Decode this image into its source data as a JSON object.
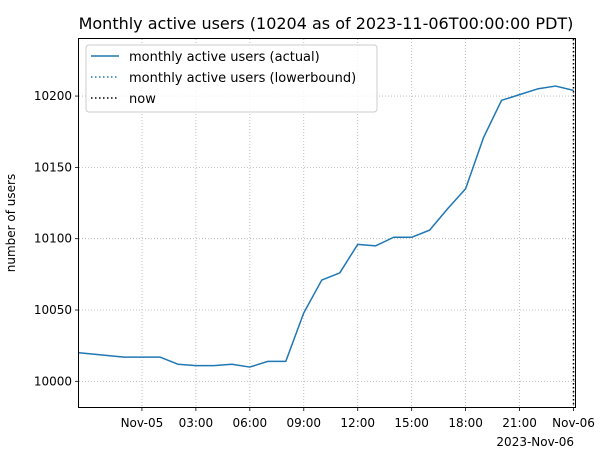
{
  "chart_data": {
    "type": "line",
    "title": "Monthly active users (10204 as of 2023-11-06T00:00:00 PDT)",
    "xlabel": "",
    "ylabel": "number of users",
    "x_axis": {
      "type": "datetime",
      "range": [
        "2023-11-04T20:30:00",
        "2023-11-06T00:05:00"
      ],
      "ticks": [
        {
          "x": "2023-11-05T00:00:00",
          "label": "Nov-05"
        },
        {
          "x": "2023-11-05T03:00:00",
          "label": "03:00"
        },
        {
          "x": "2023-11-05T06:00:00",
          "label": "06:00"
        },
        {
          "x": "2023-11-05T09:00:00",
          "label": "09:00"
        },
        {
          "x": "2023-11-05T12:00:00",
          "label": "12:00"
        },
        {
          "x": "2023-11-05T15:00:00",
          "label": "15:00"
        },
        {
          "x": "2023-11-05T18:00:00",
          "label": "18:00"
        },
        {
          "x": "2023-11-05T21:00:00",
          "label": "21:00"
        },
        {
          "x": "2023-11-06T00:00:00",
          "label": "Nov-06"
        }
      ],
      "offset_label": "2023-Nov-06"
    },
    "y_axis": {
      "range": [
        9982,
        10240
      ],
      "ticks": [
        10000,
        10050,
        10100,
        10150,
        10200
      ]
    },
    "grid": true,
    "legend_position": "top-left",
    "series": [
      {
        "name": "monthly active users (actual)",
        "style": "solid",
        "color": "#1f77b4",
        "points": [
          {
            "x": "2023-11-04T20:30:00",
            "y": 10020
          },
          {
            "x": "2023-11-04T23:00:00",
            "y": 10017
          },
          {
            "x": "2023-11-05T01:00:00",
            "y": 10017
          },
          {
            "x": "2023-11-05T02:00:00",
            "y": 10012
          },
          {
            "x": "2023-11-05T03:00:00",
            "y": 10011
          },
          {
            "x": "2023-11-05T04:00:00",
            "y": 10011
          },
          {
            "x": "2023-11-05T05:00:00",
            "y": 10012
          },
          {
            "x": "2023-11-05T06:00:00",
            "y": 10010
          },
          {
            "x": "2023-11-05T07:00:00",
            "y": 10014
          },
          {
            "x": "2023-11-05T08:00:00",
            "y": 10014
          },
          {
            "x": "2023-11-05T09:00:00",
            "y": 10048
          },
          {
            "x": "2023-11-05T10:00:00",
            "y": 10071
          },
          {
            "x": "2023-11-05T11:00:00",
            "y": 10076
          },
          {
            "x": "2023-11-05T12:00:00",
            "y": 10096
          },
          {
            "x": "2023-11-05T13:00:00",
            "y": 10095
          },
          {
            "x": "2023-11-05T14:00:00",
            "y": 10101
          },
          {
            "x": "2023-11-05T15:00:00",
            "y": 10101
          },
          {
            "x": "2023-11-05T16:00:00",
            "y": 10106
          },
          {
            "x": "2023-11-05T17:00:00",
            "y": 10121
          },
          {
            "x": "2023-11-05T18:00:00",
            "y": 10135
          },
          {
            "x": "2023-11-05T19:00:00",
            "y": 10171
          },
          {
            "x": "2023-11-05T20:00:00",
            "y": 10197
          },
          {
            "x": "2023-11-05T21:00:00",
            "y": 10201
          },
          {
            "x": "2023-11-05T22:00:00",
            "y": 10205
          },
          {
            "x": "2023-11-05T23:00:00",
            "y": 10207
          },
          {
            "x": "2023-11-06T00:00:00",
            "y": 10204
          }
        ]
      },
      {
        "name": "monthly active users (lowerbound)",
        "style": "dotted",
        "color": "#1f77b4",
        "points": []
      }
    ],
    "vlines": [
      {
        "name": "now",
        "x": "2023-11-06T00:00:00",
        "style": "dotted",
        "color": "#000000"
      }
    ],
    "legend": [
      {
        "label": "monthly active users (actual)",
        "style": "solid",
        "color": "#1f77b4"
      },
      {
        "label": "monthly active users (lowerbound)",
        "style": "dotted",
        "color": "#1f77b4"
      },
      {
        "label": "now",
        "style": "dotted",
        "color": "#000000"
      }
    ]
  }
}
